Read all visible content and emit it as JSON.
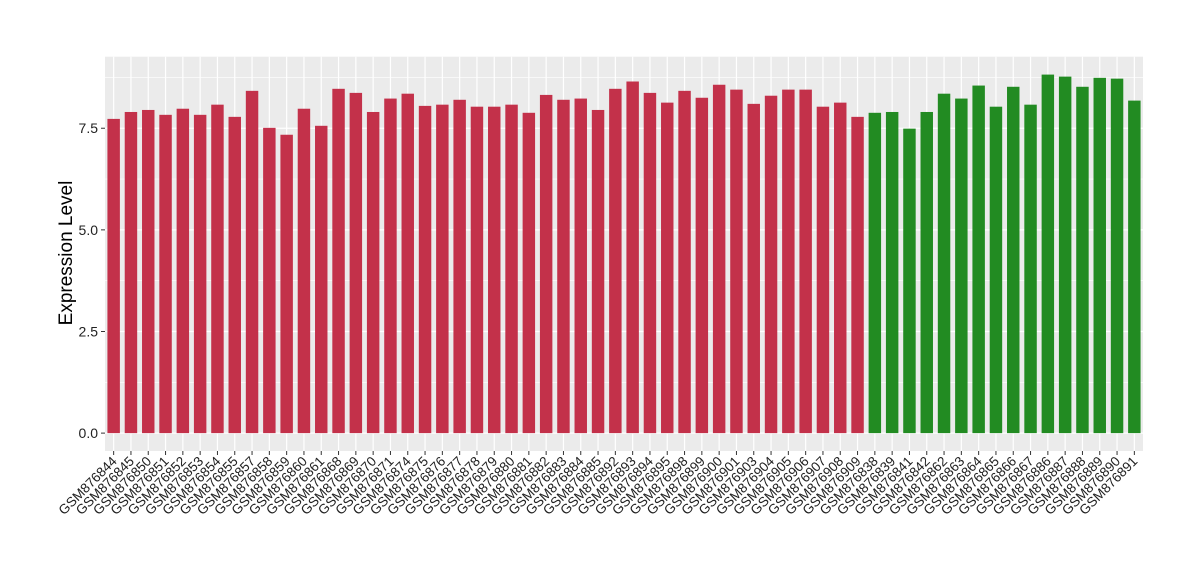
{
  "chart_data": {
    "type": "bar",
    "title": "",
    "xlabel": "",
    "ylabel": "Expression Level",
    "ylim": [
      -0.44,
      9.26
    ],
    "yticks": [
      "0.0",
      "2.5",
      "5.0",
      "7.5"
    ],
    "grid": true,
    "legend": "none",
    "colors": {
      "group1": "#C3314A",
      "group2": "#228B22",
      "panel": "#EBEBEB",
      "grid": "#FFFFFF"
    },
    "categories": [
      "GSM876844",
      "GSM876845",
      "GSM876850",
      "GSM876851",
      "GSM876852",
      "GSM876853",
      "GSM876854",
      "GSM876855",
      "GSM876857",
      "GSM876858",
      "GSM876859",
      "GSM876860",
      "GSM876861",
      "GSM876868",
      "GSM876869",
      "GSM876870",
      "GSM876871",
      "GSM876874",
      "GSM876875",
      "GSM876876",
      "GSM876877",
      "GSM876878",
      "GSM876879",
      "GSM876880",
      "GSM876881",
      "GSM876882",
      "GSM876883",
      "GSM876884",
      "GSM876885",
      "GSM876892",
      "GSM876893",
      "GSM876894",
      "GSM876895",
      "GSM876898",
      "GSM876899",
      "GSM876900",
      "GSM876901",
      "GSM876903",
      "GSM876904",
      "GSM876905",
      "GSM876906",
      "GSM876907",
      "GSM876908",
      "GSM876909",
      "GSM876838",
      "GSM876839",
      "GSM876841",
      "GSM876842",
      "GSM876862",
      "GSM876863",
      "GSM876864",
      "GSM876865",
      "GSM876866",
      "GSM876867",
      "GSM876886",
      "GSM876887",
      "GSM876888",
      "GSM876889",
      "GSM876890",
      "GSM876891"
    ],
    "values": [
      7.73,
      7.9,
      7.95,
      7.83,
      7.98,
      7.83,
      8.08,
      7.78,
      8.42,
      7.51,
      7.34,
      7.98,
      7.56,
      8.47,
      8.37,
      7.9,
      8.23,
      8.35,
      8.05,
      8.08,
      8.2,
      8.03,
      8.03,
      8.08,
      7.88,
      8.32,
      8.2,
      8.23,
      7.95,
      8.47,
      8.65,
      8.37,
      8.13,
      8.42,
      8.25,
      8.57,
      8.45,
      8.1,
      8.3,
      8.45,
      8.45,
      8.03,
      8.13,
      7.78,
      7.88,
      7.9,
      7.49,
      7.9,
      8.35,
      8.23,
      8.55,
      8.03,
      8.52,
      8.08,
      8.82,
      8.77,
      8.52,
      8.74,
      8.72,
      8.18
    ],
    "groups": [
      "group1",
      "group1",
      "group1",
      "group1",
      "group1",
      "group1",
      "group1",
      "group1",
      "group1",
      "group1",
      "group1",
      "group1",
      "group1",
      "group1",
      "group1",
      "group1",
      "group1",
      "group1",
      "group1",
      "group1",
      "group1",
      "group1",
      "group1",
      "group1",
      "group1",
      "group1",
      "group1",
      "group1",
      "group1",
      "group1",
      "group1",
      "group1",
      "group1",
      "group1",
      "group1",
      "group1",
      "group1",
      "group1",
      "group1",
      "group1",
      "group1",
      "group1",
      "group1",
      "group1",
      "group2",
      "group2",
      "group2",
      "group2",
      "group2",
      "group2",
      "group2",
      "group2",
      "group2",
      "group2",
      "group2",
      "group2",
      "group2",
      "group2",
      "group2",
      "group2"
    ]
  }
}
